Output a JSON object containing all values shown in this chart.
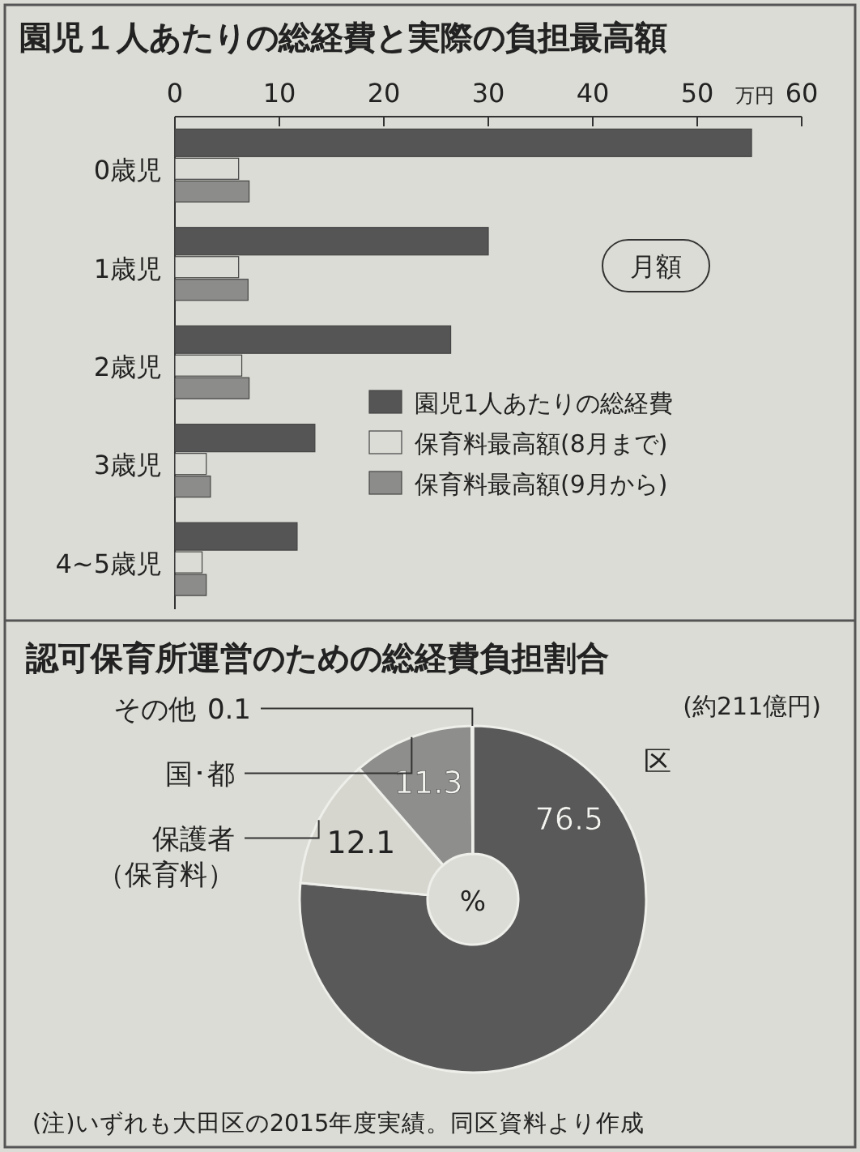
{
  "chart_data": [
    {
      "type": "bar",
      "orientation": "horizontal",
      "title": "園児１人あたりの総経費と実際の負担最高額",
      "xlabel": "万円",
      "categories": [
        "0歳児",
        "1歳児",
        "2歳児",
        "3歳児",
        "4~5歳児"
      ],
      "series": [
        {
          "name": "園児1人あたりの総経費",
          "color": "#555555",
          "values": [
            55.2,
            30.0,
            26.4,
            13.4,
            11.7
          ]
        },
        {
          "name": "保育料最高額(8月まで)",
          "color": "#dcdcd6",
          "values": [
            6.1,
            6.1,
            6.4,
            3.0,
            2.6
          ]
        },
        {
          "name": "保育料最高額(9月から)",
          "color": "#8c8c8a",
          "values": [
            7.1,
            7.0,
            7.1,
            3.4,
            3.0
          ]
        }
      ],
      "xlim": [
        0,
        60
      ],
      "xticks": [
        0,
        10,
        20,
        30,
        40,
        50,
        60
      ],
      "legend": "bottom right",
      "annotations": [
        "月額"
      ]
    },
    {
      "type": "donut",
      "title": "認可保育所運営のための総経費負担割合",
      "subtitle": "(約211億円)",
      "categories": [
        "区",
        "保護者（保育料）",
        "国･都",
        "その他"
      ],
      "values": [
        76.5,
        12.1,
        11.3,
        0.1
      ],
      "colors": [
        "#595959",
        "#d6d6cf",
        "#8e8e8c",
        "#e2e2dc"
      ],
      "data_labels": true,
      "annotations": [
        "%",
        "(注)いずれも大田区の2015年度実績。同区資料より作成"
      ]
    }
  ]
}
